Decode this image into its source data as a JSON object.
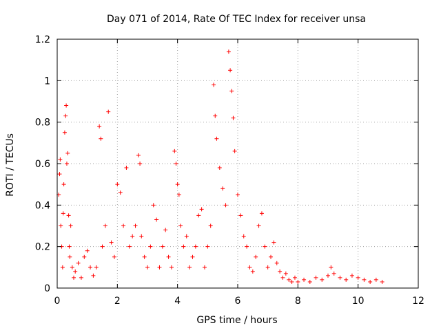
{
  "chart_data": {
    "type": "scatter",
    "title": "Day 071 of 2014, Rate Of TEC Index for receiver unsa",
    "xlabel": "GPS time / hours",
    "ylabel": "ROTI / TECUs",
    "xlim": [
      0,
      12
    ],
    "ylim": [
      0,
      1.2
    ],
    "x_ticks": [
      "0",
      "2",
      "4",
      "6",
      "8",
      "10",
      "12"
    ],
    "y_ticks": [
      "0",
      "0.2",
      "0.4",
      "0.6",
      "0.8",
      "1",
      "1.2"
    ],
    "grid": true,
    "marker": "+",
    "color": "#ff0000",
    "series": [
      {
        "x": [
          0.05,
          0.08,
          0.1,
          0.12,
          0.15,
          0.18,
          0.2,
          0.22,
          0.25,
          0.28,
          0.3,
          0.32,
          0.35,
          0.38,
          0.4,
          0.42,
          0.45,
          0.5,
          0.55,
          0.6,
          0.7,
          0.8,
          0.9,
          1.0,
          1.1,
          1.2,
          1.3,
          1.4,
          1.45,
          1.5,
          1.6,
          1.7,
          1.8,
          1.9,
          2.0,
          2.1,
          2.2,
          2.3,
          2.4,
          2.5,
          2.6,
          2.7,
          2.75,
          2.8,
          2.9,
          3.0,
          3.1,
          3.2,
          3.3,
          3.4,
          3.5,
          3.6,
          3.7,
          3.8,
          3.9,
          3.95,
          4.0,
          4.05,
          4.1,
          4.2,
          4.3,
          4.4,
          4.5,
          4.6,
          4.7,
          4.8,
          4.9,
          5.0,
          5.1,
          5.2,
          5.25,
          5.3,
          5.4,
          5.5,
          5.6,
          5.7,
          5.75,
          5.8,
          5.85,
          5.9,
          6.0,
          6.1,
          6.2,
          6.3,
          6.4,
          6.5,
          6.6,
          6.7,
          6.8,
          6.9,
          7.0,
          7.1,
          7.2,
          7.3,
          7.4,
          7.5,
          7.6,
          7.7,
          7.8,
          7.9,
          8.0,
          8.2,
          8.4,
          8.6,
          8.8,
          9.0,
          9.1,
          9.2,
          9.4,
          9.6,
          9.8,
          10.0,
          10.2,
          10.4,
          10.6,
          10.8
        ],
        "y": [
          0.45,
          0.55,
          0.62,
          0.3,
          0.2,
          0.1,
          0.36,
          0.5,
          0.75,
          0.83,
          0.88,
          0.6,
          0.65,
          0.35,
          0.2,
          0.15,
          0.3,
          0.1,
          0.05,
          0.08,
          0.12,
          0.05,
          0.15,
          0.18,
          0.1,
          0.06,
          0.1,
          0.78,
          0.72,
          0.2,
          0.3,
          0.85,
          0.22,
          0.15,
          0.5,
          0.46,
          0.3,
          0.58,
          0.2,
          0.25,
          0.3,
          0.64,
          0.6,
          0.25,
          0.15,
          0.1,
          0.2,
          0.4,
          0.33,
          0.1,
          0.2,
          0.28,
          0.15,
          0.1,
          0.66,
          0.6,
          0.5,
          0.45,
          0.3,
          0.2,
          0.25,
          0.1,
          0.15,
          0.2,
          0.35,
          0.38,
          0.1,
          0.2,
          0.3,
          0.98,
          0.83,
          0.72,
          0.58,
          0.48,
          0.4,
          1.14,
          1.05,
          0.95,
          0.82,
          0.66,
          0.45,
          0.35,
          0.25,
          0.2,
          0.1,
          0.08,
          0.15,
          0.3,
          0.36,
          0.2,
          0.1,
          0.15,
          0.22,
          0.12,
          0.08,
          0.05,
          0.07,
          0.04,
          0.03,
          0.05,
          0.03,
          0.04,
          0.03,
          0.05,
          0.04,
          0.06,
          0.1,
          0.07,
          0.05,
          0.04,
          0.06,
          0.05,
          0.04,
          0.03,
          0.04,
          0.03
        ]
      }
    ]
  }
}
